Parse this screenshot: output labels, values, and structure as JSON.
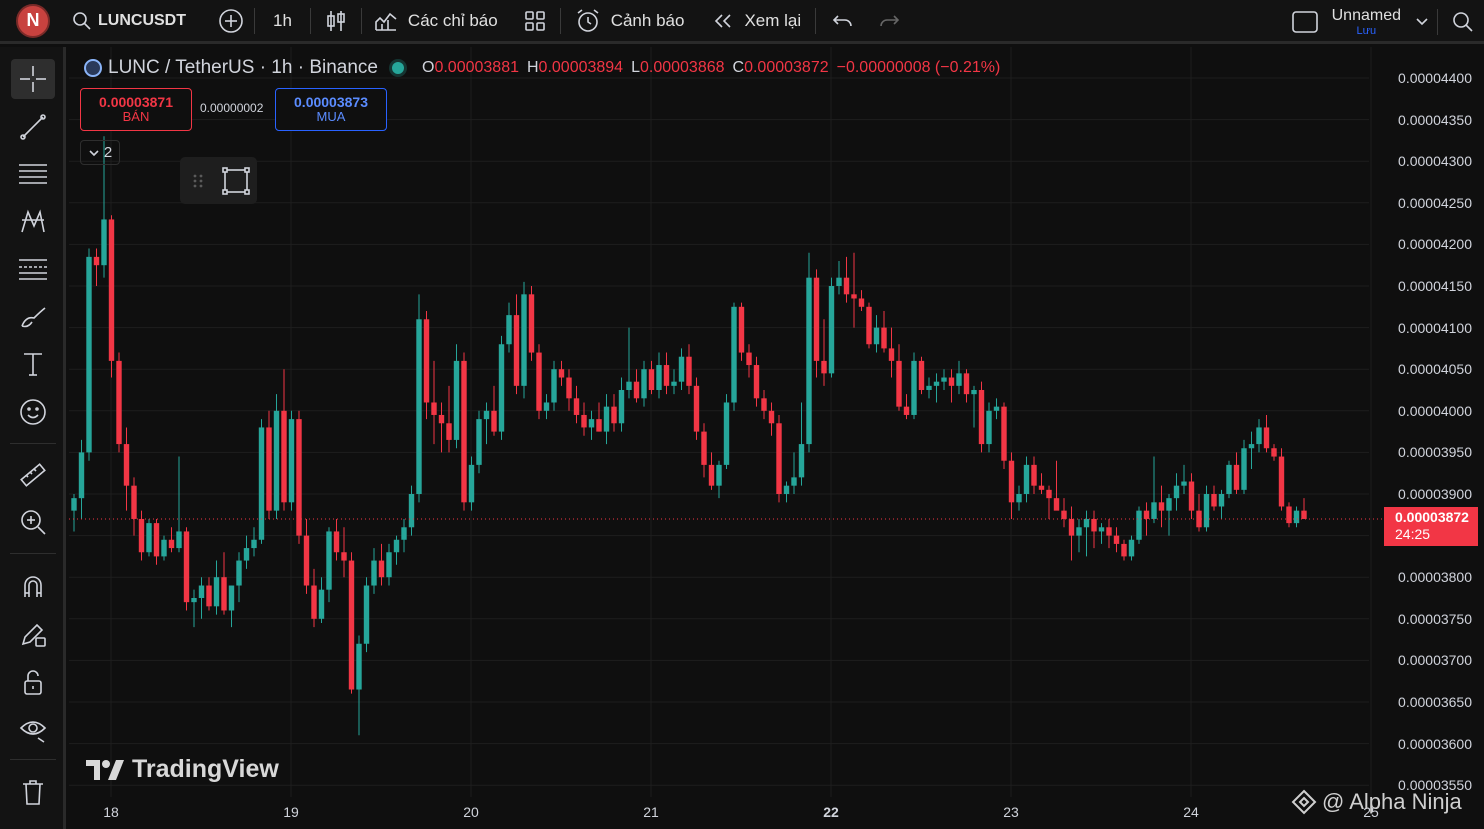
{
  "topbar": {
    "avatar_letter": "N",
    "symbol": "LUNCUSDT",
    "interval": "1h",
    "indicators_label": "Các chỉ báo",
    "alerts_label": "Cảnh báo",
    "replay_label": "Xem lại",
    "layout_name": "Unnamed",
    "save_label": "Lưu"
  },
  "legend": {
    "title": "LUNC / TetherUS · 1h · Binance",
    "open_key": "O",
    "open": "0.00003881",
    "high_key": "H",
    "high": "0.00003894",
    "low_key": "L",
    "low": "0.00003868",
    "close_key": "C",
    "close": "0.00003872",
    "change": "−0.00000008 (−0.21%)"
  },
  "trade": {
    "sell_price": "0.00003871",
    "sell_label": "BÁN",
    "spread": "0.00000002",
    "buy_price": "0.00003873",
    "buy_label": "MUA"
  },
  "collapse_count": "2",
  "price_scale": [
    "0.00004400",
    "0.00004350",
    "0.00004300",
    "0.00004250",
    "0.00004200",
    "0.00004150",
    "0.00004100",
    "0.00004050",
    "0.00004000",
    "0.00003950",
    "0.00003900",
    "0.00003850",
    "0.00003800",
    "0.00003750",
    "0.00003700",
    "0.00003650",
    "0.00003600",
    "0.00003550"
  ],
  "last_price": {
    "price": "0.00003872",
    "countdown": "24:25"
  },
  "date_labels": [
    {
      "label": "18",
      "bold": false
    },
    {
      "label": "19",
      "bold": false
    },
    {
      "label": "20",
      "bold": false
    },
    {
      "label": "21",
      "bold": false
    },
    {
      "label": "22",
      "bold": true
    },
    {
      "label": "23",
      "bold": false
    },
    {
      "label": "24",
      "bold": false
    },
    {
      "label": "25",
      "bold": false
    }
  ],
  "watermark": "TradingView",
  "credit": "@ Alpha Ninja",
  "colors": {
    "up": "#26a69a",
    "down": "#f23645",
    "background": "#0f0f0f",
    "grid": "#1e1e1e"
  },
  "chart_data": {
    "type": "candlestick",
    "symbol": "LUNC / TetherUS",
    "interval": "1h",
    "exchange": "Binance",
    "y_range": [
      3.55e-05,
      4.4e-05
    ],
    "x_start_label": "18",
    "x_end_label": "25",
    "series": [
      {
        "o": 3.88e-05,
        "h": 3.9e-05,
        "l": 3.855e-05,
        "c": 3.895e-05
      },
      {
        "o": 3.895e-05,
        "h": 3.965e-05,
        "l": 3.87e-05,
        "c": 3.95e-05
      },
      {
        "o": 3.95e-05,
        "h": 4.195e-05,
        "l": 3.94e-05,
        "c": 4.185e-05
      },
      {
        "o": 4.185e-05,
        "h": 4.195e-05,
        "l": 4.15e-05,
        "c": 4.175e-05
      },
      {
        "o": 4.175e-05,
        "h": 4.33e-05,
        "l": 4.16e-05,
        "c": 4.23e-05
      },
      {
        "o": 4.23e-05,
        "h": 4.235e-05,
        "l": 4.04e-05,
        "c": 4.06e-05
      },
      {
        "o": 4.06e-05,
        "h": 4.07e-05,
        "l": 3.95e-05,
        "c": 3.96e-05
      },
      {
        "o": 3.96e-05,
        "h": 3.98e-05,
        "l": 3.88e-05,
        "c": 3.91e-05
      },
      {
        "o": 3.91e-05,
        "h": 3.92e-05,
        "l": 3.85e-05,
        "c": 3.87e-05
      },
      {
        "o": 3.87e-05,
        "h": 3.88e-05,
        "l": 3.82e-05,
        "c": 3.83e-05
      },
      {
        "o": 3.83e-05,
        "h": 3.87e-05,
        "l": 3.825e-05,
        "c": 3.865e-05
      },
      {
        "o": 3.865e-05,
        "h": 3.87e-05,
        "l": 3.815e-05,
        "c": 3.825e-05
      },
      {
        "o": 3.825e-05,
        "h": 3.85e-05,
        "l": 3.82e-05,
        "c": 3.845e-05
      },
      {
        "o": 3.845e-05,
        "h": 3.86e-05,
        "l": 3.83e-05,
        "c": 3.835e-05
      },
      {
        "o": 3.835e-05,
        "h": 3.945e-05,
        "l": 3.83e-05,
        "c": 3.855e-05
      },
      {
        "o": 3.855e-05,
        "h": 3.86e-05,
        "l": 3.76e-05,
        "c": 3.77e-05
      },
      {
        "o": 3.77e-05,
        "h": 3.785e-05,
        "l": 3.74e-05,
        "c": 3.775e-05
      },
      {
        "o": 3.775e-05,
        "h": 3.8e-05,
        "l": 3.75e-05,
        "c": 3.79e-05
      },
      {
        "o": 3.79e-05,
        "h": 3.8e-05,
        "l": 3.76e-05,
        "c": 3.765e-05
      },
      {
        "o": 3.765e-05,
        "h": 3.82e-05,
        "l": 3.755e-05,
        "c": 3.8e-05
      },
      {
        "o": 3.8e-05,
        "h": 3.83e-05,
        "l": 3.755e-05,
        "c": 3.76e-05
      },
      {
        "o": 3.76e-05,
        "h": 3.79e-05,
        "l": 3.74e-05,
        "c": 3.79e-05
      },
      {
        "o": 3.79e-05,
        "h": 3.83e-05,
        "l": 3.77e-05,
        "c": 3.82e-05
      },
      {
        "o": 3.82e-05,
        "h": 3.85e-05,
        "l": 3.81e-05,
        "c": 3.835e-05
      },
      {
        "o": 3.835e-05,
        "h": 3.86e-05,
        "l": 3.825e-05,
        "c": 3.845e-05
      },
      {
        "o": 3.845e-05,
        "h": 3.99e-05,
        "l": 3.84e-05,
        "c": 3.98e-05
      },
      {
        "o": 3.98e-05,
        "h": 4e-05,
        "l": 3.87e-05,
        "c": 3.88e-05
      },
      {
        "o": 3.88e-05,
        "h": 4.02e-05,
        "l": 3.87e-05,
        "c": 4e-05
      },
      {
        "o": 4e-05,
        "h": 4.05e-05,
        "l": 3.88e-05,
        "c": 3.89e-05
      },
      {
        "o": 3.89e-05,
        "h": 4e-05,
        "l": 3.88e-05,
        "c": 3.99e-05
      },
      {
        "o": 3.99e-05,
        "h": 4e-05,
        "l": 3.84e-05,
        "c": 3.85e-05
      },
      {
        "o": 3.85e-05,
        "h": 3.87e-05,
        "l": 3.78e-05,
        "c": 3.79e-05
      },
      {
        "o": 3.79e-05,
        "h": 3.81e-05,
        "l": 3.74e-05,
        "c": 3.75e-05
      },
      {
        "o": 3.75e-05,
        "h": 3.8e-05,
        "l": 3.745e-05,
        "c": 3.785e-05
      },
      {
        "o": 3.785e-05,
        "h": 3.86e-05,
        "l": 3.77e-05,
        "c": 3.855e-05
      },
      {
        "o": 3.855e-05,
        "h": 3.87e-05,
        "l": 3.82e-05,
        "c": 3.83e-05
      },
      {
        "o": 3.83e-05,
        "h": 3.86e-05,
        "l": 3.8e-05,
        "c": 3.82e-05
      },
      {
        "o": 3.82e-05,
        "h": 3.83e-05,
        "l": 3.66e-05,
        "c": 3.665e-05
      },
      {
        "o": 3.665e-05,
        "h": 3.73e-05,
        "l": 3.61e-05,
        "c": 3.72e-05
      },
      {
        "o": 3.72e-05,
        "h": 3.8e-05,
        "l": 3.71e-05,
        "c": 3.79e-05
      },
      {
        "o": 3.79e-05,
        "h": 3.835e-05,
        "l": 3.78e-05,
        "c": 3.82e-05
      },
      {
        "o": 3.82e-05,
        "h": 3.84e-05,
        "l": 3.79e-05,
        "c": 3.8e-05
      },
      {
        "o": 3.8e-05,
        "h": 3.84e-05,
        "l": 3.79e-05,
        "c": 3.83e-05
      },
      {
        "o": 3.83e-05,
        "h": 3.85e-05,
        "l": 3.815e-05,
        "c": 3.845e-05
      },
      {
        "o": 3.845e-05,
        "h": 3.87e-05,
        "l": 3.83e-05,
        "c": 3.86e-05
      },
      {
        "o": 3.86e-05,
        "h": 3.91e-05,
        "l": 3.85e-05,
        "c": 3.9e-05
      },
      {
        "o": 3.9e-05,
        "h": 4.14e-05,
        "l": 3.89e-05,
        "c": 4.11e-05
      },
      {
        "o": 4.11e-05,
        "h": 4.12e-05,
        "l": 3.99e-05,
        "c": 4.01e-05
      },
      {
        "o": 4.01e-05,
        "h": 4.06e-05,
        "l": 3.96e-05,
        "c": 3.995e-05
      },
      {
        "o": 3.995e-05,
        "h": 4.01e-05,
        "l": 3.95e-05,
        "c": 3.985e-05
      },
      {
        "o": 3.985e-05,
        "h": 4.03e-05,
        "l": 3.95e-05,
        "c": 3.965e-05
      },
      {
        "o": 3.965e-05,
        "h": 4.08e-05,
        "l": 3.955e-05,
        "c": 4.06e-05
      },
      {
        "o": 4.06e-05,
        "h": 4.07e-05,
        "l": 3.88e-05,
        "c": 3.89e-05
      },
      {
        "o": 3.89e-05,
        "h": 3.945e-05,
        "l": 3.88e-05,
        "c": 3.935e-05
      },
      {
        "o": 3.935e-05,
        "h": 4e-05,
        "l": 3.925e-05,
        "c": 3.99e-05
      },
      {
        "o": 3.99e-05,
        "h": 4.01e-05,
        "l": 3.96e-05,
        "c": 4e-05
      },
      {
        "o": 4e-05,
        "h": 4.03e-05,
        "l": 3.97e-05,
        "c": 3.975e-05
      },
      {
        "o": 3.975e-05,
        "h": 4.09e-05,
        "l": 3.965e-05,
        "c": 4.08e-05
      },
      {
        "o": 4.08e-05,
        "h": 4.13e-05,
        "l": 4.07e-05,
        "c": 4.115e-05
      },
      {
        "o": 4.115e-05,
        "h": 4.14e-05,
        "l": 4.02e-05,
        "c": 4.03e-05
      },
      {
        "o": 4.03e-05,
        "h": 4.155e-05,
        "l": 4.015e-05,
        "c": 4.14e-05
      },
      {
        "o": 4.14e-05,
        "h": 4.15e-05,
        "l": 4.06e-05,
        "c": 4.07e-05
      },
      {
        "o": 4.07e-05,
        "h": 4.08e-05,
        "l": 3.99e-05,
        "c": 4e-05
      },
      {
        "o": 4e-05,
        "h": 4.02e-05,
        "l": 3.99e-05,
        "c": 4.01e-05
      },
      {
        "o": 4.01e-05,
        "h": 4.06e-05,
        "l": 4e-05,
        "c": 4.05e-05
      },
      {
        "o": 4.05e-05,
        "h": 4.06e-05,
        "l": 4.03e-05,
        "c": 4.04e-05
      },
      {
        "o": 4.04e-05,
        "h": 4.05e-05,
        "l": 4e-05,
        "c": 4.015e-05
      },
      {
        "o": 4.015e-05,
        "h": 4.03e-05,
        "l": 3.985e-05,
        "c": 3.995e-05
      },
      {
        "o": 3.995e-05,
        "h": 4.01e-05,
        "l": 3.97e-05,
        "c": 3.98e-05
      },
      {
        "o": 3.98e-05,
        "h": 4e-05,
        "l": 3.965e-05,
        "c": 3.99e-05
      },
      {
        "o": 3.99e-05,
        "h": 4.01e-05,
        "l": 3.975e-05,
        "c": 3.975e-05
      },
      {
        "o": 3.975e-05,
        "h": 4.02e-05,
        "l": 3.96e-05,
        "c": 4.005e-05
      },
      {
        "o": 4.005e-05,
        "h": 4.02e-05,
        "l": 3.975e-05,
        "c": 3.985e-05
      },
      {
        "o": 3.985e-05,
        "h": 4.04e-05,
        "l": 3.975e-05,
        "c": 4.025e-05
      },
      {
        "o": 4.025e-05,
        "h": 4.1e-05,
        "l": 4.015e-05,
        "c": 4.035e-05
      },
      {
        "o": 4.035e-05,
        "h": 4.05e-05,
        "l": 4.01e-05,
        "c": 4.015e-05
      },
      {
        "o": 4.015e-05,
        "h": 4.06e-05,
        "l": 4.005e-05,
        "c": 4.05e-05
      },
      {
        "o": 4.05e-05,
        "h": 4.06e-05,
        "l": 4.02e-05,
        "c": 4.025e-05
      },
      {
        "o": 4.025e-05,
        "h": 4.07e-05,
        "l": 4.015e-05,
        "c": 4.055e-05
      },
      {
        "o": 4.055e-05,
        "h": 4.07e-05,
        "l": 4.02e-05,
        "c": 4.03e-05
      },
      {
        "o": 4.03e-05,
        "h": 4.05e-05,
        "l": 4.02e-05,
        "c": 4.035e-05
      },
      {
        "o": 4.035e-05,
        "h": 4.075e-05,
        "l": 4.025e-05,
        "c": 4.065e-05
      },
      {
        "o": 4.065e-05,
        "h": 4.08e-05,
        "l": 4.02e-05,
        "c": 4.03e-05
      },
      {
        "o": 4.03e-05,
        "h": 4.04e-05,
        "l": 3.965e-05,
        "c": 3.975e-05
      },
      {
        "o": 3.975e-05,
        "h": 3.985e-05,
        "l": 3.92e-05,
        "c": 3.935e-05
      },
      {
        "o": 3.935e-05,
        "h": 3.95e-05,
        "l": 3.905e-05,
        "c": 3.91e-05
      },
      {
        "o": 3.91e-05,
        "h": 3.94e-05,
        "l": 3.895e-05,
        "c": 3.935e-05
      },
      {
        "o": 3.935e-05,
        "h": 4.02e-05,
        "l": 3.93e-05,
        "c": 4.01e-05
      },
      {
        "o": 4.01e-05,
        "h": 4.13e-05,
        "l": 4e-05,
        "c": 4.125e-05
      },
      {
        "o": 4.125e-05,
        "h": 4.13e-05,
        "l": 4.06e-05,
        "c": 4.07e-05
      },
      {
        "o": 4.07e-05,
        "h": 4.08e-05,
        "l": 4.04e-05,
        "c": 4.055e-05
      },
      {
        "o": 4.055e-05,
        "h": 4.065e-05,
        "l": 4.005e-05,
        "c": 4.015e-05
      },
      {
        "o": 4.015e-05,
        "h": 4.025e-05,
        "l": 3.99e-05,
        "c": 4e-05
      },
      {
        "o": 4e-05,
        "h": 4.01e-05,
        "l": 3.97e-05,
        "c": 3.985e-05
      },
      {
        "o": 3.985e-05,
        "h": 3.995e-05,
        "l": 3.89e-05,
        "c": 3.9e-05
      },
      {
        "o": 3.9e-05,
        "h": 3.915e-05,
        "l": 3.89e-05,
        "c": 3.91e-05
      },
      {
        "o": 3.91e-05,
        "h": 3.95e-05,
        "l": 3.9e-05,
        "c": 3.92e-05
      },
      {
        "o": 3.92e-05,
        "h": 4.01e-05,
        "l": 3.91e-05,
        "c": 3.96e-05
      },
      {
        "o": 3.96e-05,
        "h": 4.19e-05,
        "l": 3.95e-05,
        "c": 4.16e-05
      },
      {
        "o": 4.16e-05,
        "h": 4.17e-05,
        "l": 4.04e-05,
        "c": 4.06e-05
      },
      {
        "o": 4.06e-05,
        "h": 4.11e-05,
        "l": 4.03e-05,
        "c": 4.045e-05
      },
      {
        "o": 4.045e-05,
        "h": 4.16e-05,
        "l": 4.04e-05,
        "c": 4.15e-05
      },
      {
        "o": 4.15e-05,
        "h": 4.18e-05,
        "l": 4.14e-05,
        "c": 4.16e-05
      },
      {
        "o": 4.16e-05,
        "h": 4.185e-05,
        "l": 4.13e-05,
        "c": 4.14e-05
      },
      {
        "o": 4.14e-05,
        "h": 4.19e-05,
        "l": 4.1e-05,
        "c": 4.135e-05
      },
      {
        "o": 4.135e-05,
        "h": 4.145e-05,
        "l": 4.12e-05,
        "c": 4.125e-05
      },
      {
        "o": 4.125e-05,
        "h": 4.13e-05,
        "l": 4.075e-05,
        "c": 4.08e-05
      },
      {
        "o": 4.08e-05,
        "h": 4.115e-05,
        "l": 4.07e-05,
        "c": 4.1e-05
      },
      {
        "o": 4.1e-05,
        "h": 4.12e-05,
        "l": 4.07e-05,
        "c": 4.075e-05
      },
      {
        "o": 4.075e-05,
        "h": 4.1e-05,
        "l": 4.04e-05,
        "c": 4.06e-05
      },
      {
        "o": 4.06e-05,
        "h": 4.08e-05,
        "l": 4e-05,
        "c": 4.005e-05
      },
      {
        "o": 4.005e-05,
        "h": 4.02e-05,
        "l": 3.99e-05,
        "c": 3.995e-05
      },
      {
        "o": 3.995e-05,
        "h": 4.07e-05,
        "l": 3.99e-05,
        "c": 4.06e-05
      },
      {
        "o": 4.06e-05,
        "h": 4.065e-05,
        "l": 4.02e-05,
        "c": 4.025e-05
      },
      {
        "o": 4.025e-05,
        "h": 4.04e-05,
        "l": 4.015e-05,
        "c": 4.03e-05
      },
      {
        "o": 4.03e-05,
        "h": 4.045e-05,
        "l": 4.01e-05,
        "c": 4.035e-05
      },
      {
        "o": 4.035e-05,
        "h": 4.05e-05,
        "l": 4.025e-05,
        "c": 4.04e-05
      },
      {
        "o": 4.04e-05,
        "h": 4.05e-05,
        "l": 4.01e-05,
        "c": 4.03e-05
      },
      {
        "o": 4.03e-05,
        "h": 4.06e-05,
        "l": 4.02e-05,
        "c": 4.045e-05
      },
      {
        "o": 4.045e-05,
        "h": 4.05e-05,
        "l": 4.01e-05,
        "c": 4.02e-05
      },
      {
        "o": 4.02e-05,
        "h": 4.03e-05,
        "l": 3.98e-05,
        "c": 4.025e-05
      },
      {
        "o": 4.025e-05,
        "h": 4.035e-05,
        "l": 3.95e-05,
        "c": 3.96e-05
      },
      {
        "o": 3.96e-05,
        "h": 4.01e-05,
        "l": 3.95e-05,
        "c": 4e-05
      },
      {
        "o": 4e-05,
        "h": 4.015e-05,
        "l": 3.99e-05,
        "c": 4.005e-05
      },
      {
        "o": 4.005e-05,
        "h": 4.01e-05,
        "l": 3.93e-05,
        "c": 3.94e-05
      },
      {
        "o": 3.94e-05,
        "h": 3.95e-05,
        "l": 3.87e-05,
        "c": 3.89e-05
      },
      {
        "o": 3.89e-05,
        "h": 3.91e-05,
        "l": 3.88e-05,
        "c": 3.9e-05
      },
      {
        "o": 3.9e-05,
        "h": 3.945e-05,
        "l": 3.89e-05,
        "c": 3.935e-05
      },
      {
        "o": 3.935e-05,
        "h": 3.945e-05,
        "l": 3.9e-05,
        "c": 3.91e-05
      },
      {
        "o": 3.91e-05,
        "h": 3.925e-05,
        "l": 3.9e-05,
        "c": 3.905e-05
      },
      {
        "o": 3.905e-05,
        "h": 3.91e-05,
        "l": 3.87e-05,
        "c": 3.895e-05
      },
      {
        "o": 3.895e-05,
        "h": 3.94e-05,
        "l": 3.885e-05,
        "c": 3.88e-05
      },
      {
        "o": 3.88e-05,
        "h": 3.895e-05,
        "l": 3.86e-05,
        "c": 3.87e-05
      },
      {
        "o": 3.87e-05,
        "h": 3.885e-05,
        "l": 3.82e-05,
        "c": 3.85e-05
      },
      {
        "o": 3.85e-05,
        "h": 3.87e-05,
        "l": 3.83e-05,
        "c": 3.86e-05
      },
      {
        "o": 3.86e-05,
        "h": 3.88e-05,
        "l": 3.825e-05,
        "c": 3.87e-05
      },
      {
        "o": 3.87e-05,
        "h": 3.88e-05,
        "l": 3.835e-05,
        "c": 3.855e-05
      },
      {
        "o": 3.855e-05,
        "h": 3.865e-05,
        "l": 3.84e-05,
        "c": 3.86e-05
      },
      {
        "o": 3.86e-05,
        "h": 3.87e-05,
        "l": 3.835e-05,
        "c": 3.85e-05
      },
      {
        "o": 3.85e-05,
        "h": 3.86e-05,
        "l": 3.83e-05,
        "c": 3.84e-05
      },
      {
        "o": 3.84e-05,
        "h": 3.845e-05,
        "l": 3.82e-05,
        "c": 3.825e-05
      },
      {
        "o": 3.825e-05,
        "h": 3.85e-05,
        "l": 3.82e-05,
        "c": 3.845e-05
      },
      {
        "o": 3.845e-05,
        "h": 3.885e-05,
        "l": 3.84e-05,
        "c": 3.88e-05
      },
      {
        "o": 3.88e-05,
        "h": 3.89e-05,
        "l": 3.85e-05,
        "c": 3.87e-05
      },
      {
        "o": 3.87e-05,
        "h": 3.945e-05,
        "l": 3.865e-05,
        "c": 3.89e-05
      },
      {
        "o": 3.89e-05,
        "h": 3.91e-05,
        "l": 3.86e-05,
        "c": 3.88e-05
      },
      {
        "o": 3.88e-05,
        "h": 3.9e-05,
        "l": 3.85e-05,
        "c": 3.895e-05
      },
      {
        "o": 3.895e-05,
        "h": 3.925e-05,
        "l": 3.88e-05,
        "c": 3.91e-05
      },
      {
        "o": 3.91e-05,
        "h": 3.935e-05,
        "l": 3.9e-05,
        "c": 3.915e-05
      },
      {
        "o": 3.915e-05,
        "h": 3.925e-05,
        "l": 3.87e-05,
        "c": 3.88e-05
      },
      {
        "o": 3.88e-05,
        "h": 3.9e-05,
        "l": 3.855e-05,
        "c": 3.86e-05
      },
      {
        "o": 3.86e-05,
        "h": 3.91e-05,
        "l": 3.855e-05,
        "c": 3.9e-05
      },
      {
        "o": 3.9e-05,
        "h": 3.91e-05,
        "l": 3.88e-05,
        "c": 3.885e-05
      },
      {
        "o": 3.885e-05,
        "h": 3.905e-05,
        "l": 3.87e-05,
        "c": 3.9e-05
      },
      {
        "o": 3.9e-05,
        "h": 3.94e-05,
        "l": 3.895e-05,
        "c": 3.935e-05
      },
      {
        "o": 3.935e-05,
        "h": 3.95e-05,
        "l": 3.9e-05,
        "c": 3.905e-05
      },
      {
        "o": 3.905e-05,
        "h": 3.965e-05,
        "l": 3.9e-05,
        "c": 3.955e-05
      },
      {
        "o": 3.955e-05,
        "h": 3.975e-05,
        "l": 3.93e-05,
        "c": 3.96e-05
      },
      {
        "o": 3.96e-05,
        "h": 3.99e-05,
        "l": 3.95e-05,
        "c": 3.98e-05
      },
      {
        "o": 3.98e-05,
        "h": 3.995e-05,
        "l": 3.95e-05,
        "c": 3.955e-05
      },
      {
        "o": 3.955e-05,
        "h": 3.96e-05,
        "l": 3.94e-05,
        "c": 3.945e-05
      },
      {
        "o": 3.945e-05,
        "h": 3.955e-05,
        "l": 3.88e-05,
        "c": 3.885e-05
      },
      {
        "o": 3.885e-05,
        "h": 3.89e-05,
        "l": 3.86e-05,
        "c": 3.865e-05
      },
      {
        "o": 3.865e-05,
        "h": 3.885e-05,
        "l": 3.86e-05,
        "c": 3.88e-05
      },
      {
        "o": 3.88e-05,
        "h": 3.895e-05,
        "l": 3.87e-05,
        "c": 3.87e-05
      }
    ]
  }
}
